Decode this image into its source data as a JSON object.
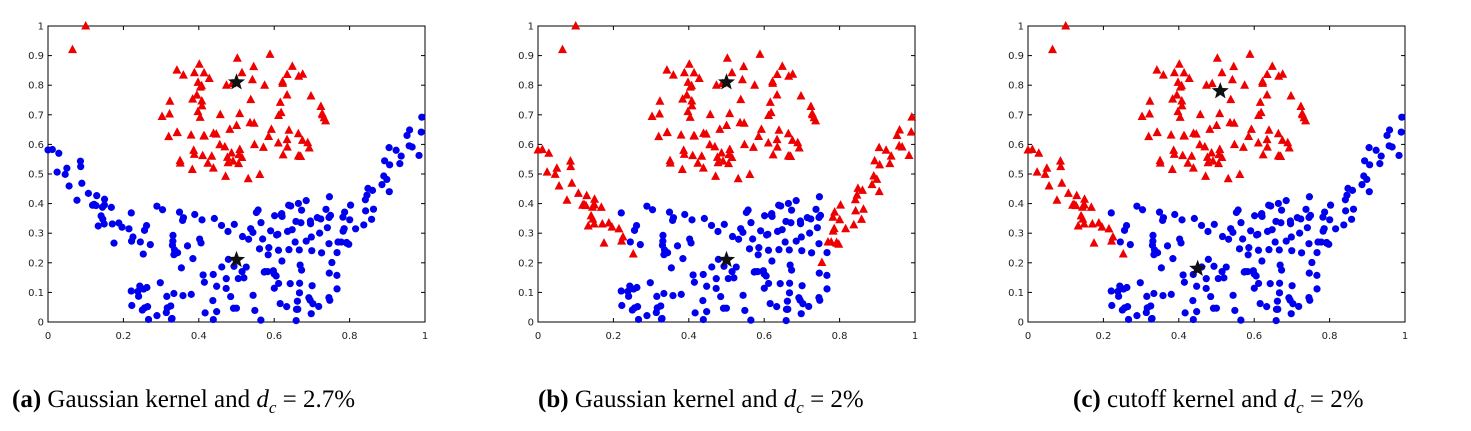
{
  "chart_data": [
    {
      "type": "scatter",
      "caption": {
        "label": "(a)",
        "text": "Gaussian kernel and",
        "var": "d",
        "sub": "c",
        "eq": "= 2.7%"
      },
      "xlim": [
        0,
        1
      ],
      "ylim": [
        0,
        1
      ],
      "xticks": [
        "0",
        "0.2",
        "0.4",
        "0.6",
        "0.8",
        "1"
      ],
      "yticks": [
        "0",
        "0.1",
        "0.2",
        "0.3",
        "0.4",
        "0.5",
        "0.6",
        "0.7",
        "0.8",
        "0.9",
        "1"
      ],
      "split": "top-only",
      "centers": [
        [
          0.5,
          0.81
        ],
        [
          0.5,
          0.21
        ]
      ],
      "series": [
        {
          "name": "cluster-triangles",
          "color": "#ee0000",
          "marker": "triangle"
        },
        {
          "name": "cluster-circles",
          "color": "#0000ee",
          "marker": "circle"
        }
      ]
    },
    {
      "type": "scatter",
      "caption": {
        "label": "(b)",
        "text": "Gaussian kernel and",
        "var": "d",
        "sub": "c",
        "eq": "= 2%"
      },
      "xlim": [
        0,
        1
      ],
      "ylim": [
        0,
        1
      ],
      "xticks": [
        "0",
        "0.2",
        "0.4",
        "0.6",
        "0.8",
        "1"
      ],
      "yticks": [
        "0",
        "0.1",
        "0.2",
        "0.3",
        "0.4",
        "0.5",
        "0.6",
        "0.7",
        "0.8",
        "0.9",
        "1"
      ],
      "split": "arms-red",
      "centers": [
        [
          0.5,
          0.81
        ],
        [
          0.5,
          0.21
        ]
      ],
      "series": [
        {
          "name": "cluster-triangles",
          "color": "#ee0000",
          "marker": "triangle"
        },
        {
          "name": "cluster-circles",
          "color": "#0000ee",
          "marker": "circle"
        }
      ]
    },
    {
      "type": "scatter",
      "caption": {
        "label": "(c)",
        "text": "cutoff kernel and",
        "var": "d",
        "sub": "c",
        "eq": "= 2%"
      },
      "xlim": [
        0,
        1
      ],
      "ylim": [
        0,
        1
      ],
      "xticks": [
        "0",
        "0.2",
        "0.4",
        "0.6",
        "0.8",
        "1"
      ],
      "yticks": [
        "0",
        "0.1",
        "0.2",
        "0.3",
        "0.4",
        "0.5",
        "0.6",
        "0.7",
        "0.8",
        "0.9",
        "1"
      ],
      "split": "left-red",
      "centers": [
        [
          0.51,
          0.78
        ],
        [
          0.45,
          0.18
        ]
      ],
      "series": [
        {
          "name": "cluster-triangles",
          "color": "#ee0000",
          "marker": "triangle"
        },
        {
          "name": "cluster-circles",
          "color": "#0000ee",
          "marker": "circle"
        }
      ]
    }
  ]
}
